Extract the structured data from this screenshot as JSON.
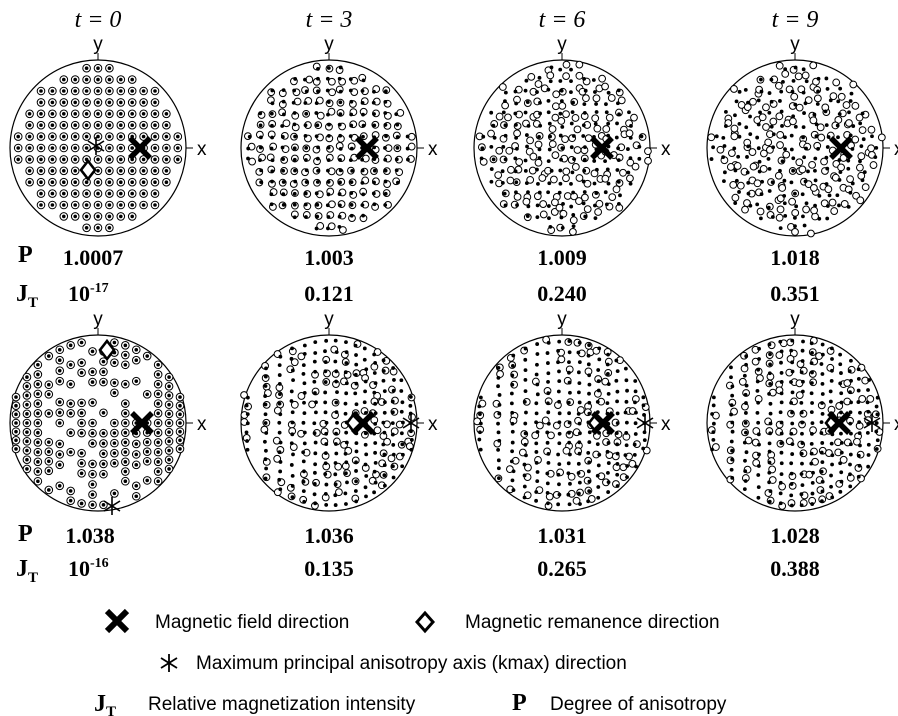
{
  "time_labels": [
    "t = 0",
    "t = 3",
    "t = 6",
    "t = 9"
  ],
  "axis_labels": {
    "x": "x",
    "y": "y"
  },
  "row_labels": {
    "p": "P",
    "jt_main": "J",
    "jt_sub": "T"
  },
  "rows": [
    {
      "p_values": [
        "1.0007",
        "1.003",
        "1.009",
        "1.018"
      ],
      "jt_values": [
        {
          "base": "10",
          "exp": "-17"
        },
        {
          "base": "0.121",
          "exp": ""
        },
        {
          "base": "0.240",
          "exp": ""
        },
        {
          "base": "0.351",
          "exp": ""
        }
      ]
    },
    {
      "p_values": [
        "1.038",
        "1.036",
        "1.031",
        "1.028"
      ],
      "jt_values": [
        {
          "base": "10",
          "exp": "-16"
        },
        {
          "base": "0.135",
          "exp": ""
        },
        {
          "base": "0.265",
          "exp": ""
        },
        {
          "base": "0.388",
          "exp": ""
        }
      ]
    }
  ],
  "legend": {
    "field": "Magnetic field direction",
    "remanence": "Magnetic remanence direction",
    "kmax": "Maximum principal anisotropy axis (kmax) direction",
    "jt_symbol": "J",
    "jt_sub": "T",
    "jt_text": "Relative magnetization intensity",
    "p_symbol": "P",
    "p_text": "Degree of anisotropy"
  }
}
